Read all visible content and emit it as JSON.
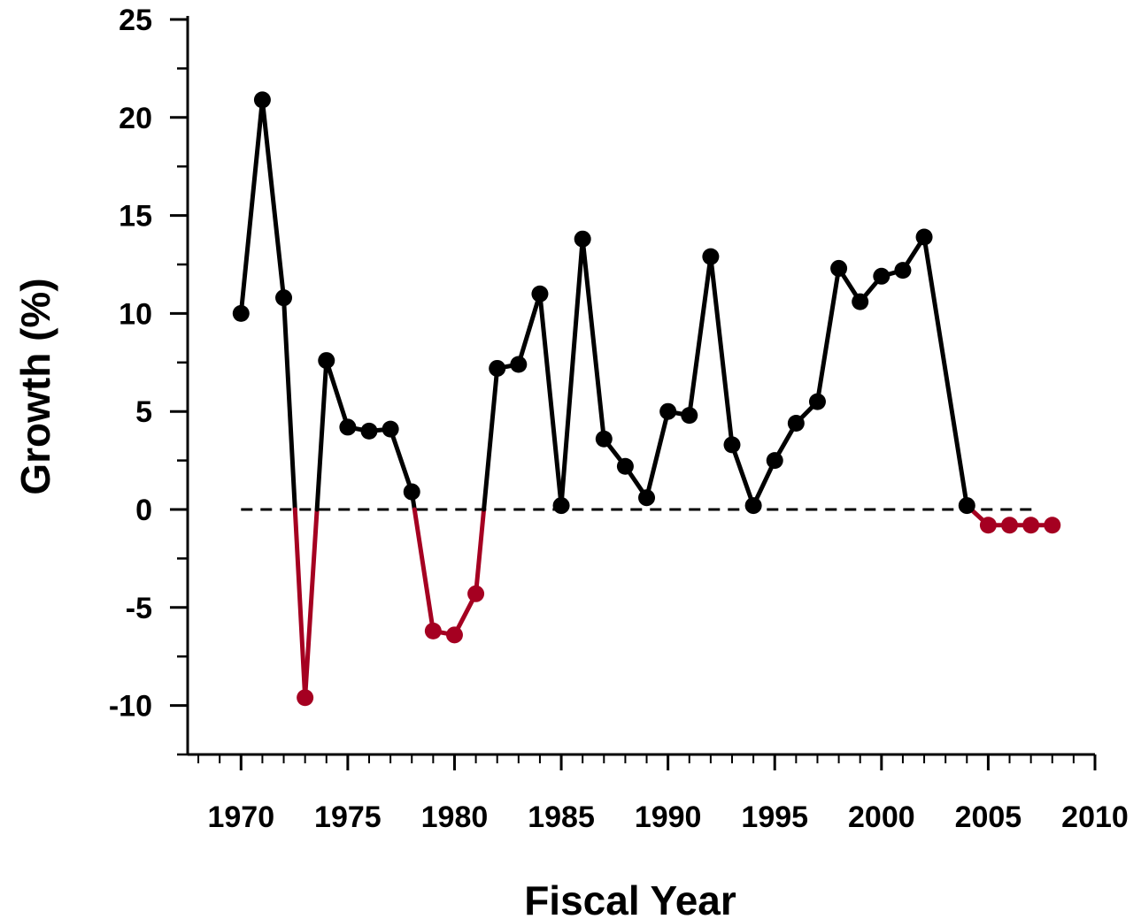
{
  "chart_data": {
    "type": "line",
    "title": "",
    "xlabel": "Fiscal Year",
    "ylabel": "Growth (%)",
    "xlim": [
      1967.5,
      2010
    ],
    "ylim": [
      -12.5,
      25
    ],
    "xticks": [
      1970,
      1975,
      1980,
      1985,
      1990,
      1995,
      2000,
      2005,
      2010
    ],
    "yticks": [
      25,
      20,
      15,
      10,
      5,
      0,
      -5,
      -10
    ],
    "xtick_labels": [
      "1970",
      "1975",
      "1980",
      "1985",
      "1990",
      "1995",
      "2000",
      "2005",
      "2010"
    ],
    "ytick_labels": [
      "25",
      "20",
      "15",
      "10",
      "5",
      "0",
      "-5",
      "-10"
    ],
    "y_minor_step": 2.5,
    "zero_reference_line": "dashed",
    "grid": false,
    "colors": {
      "positive": "#000000",
      "negative": "#a50021",
      "reference": "#000000"
    },
    "series": [
      {
        "x": [
          1970,
          1971,
          1972,
          1973,
          1974,
          1975,
          1976,
          1977,
          1978,
          1979,
          1980,
          1981,
          1982,
          1983,
          1984,
          1985,
          1986,
          1987,
          1988,
          1989,
          1990,
          1991,
          1992,
          1993,
          1994,
          1995,
          1996,
          1997,
          1998,
          1999,
          2000,
          2001,
          2002,
          2004,
          2005,
          2006,
          2007,
          2008
        ],
        "values": [
          10.0,
          20.9,
          10.8,
          -9.6,
          7.6,
          4.2,
          4.0,
          4.1,
          0.9,
          -6.2,
          -6.4,
          -4.3,
          7.2,
          7.4,
          11.0,
          0.2,
          13.8,
          3.6,
          2.2,
          0.6,
          5.0,
          4.8,
          12.9,
          3.3,
          0.2,
          2.5,
          4.4,
          5.5,
          12.3,
          10.6,
          11.9,
          12.2,
          13.9,
          0.2,
          -0.8,
          -0.8,
          -0.8,
          -0.8
        ]
      }
    ]
  }
}
